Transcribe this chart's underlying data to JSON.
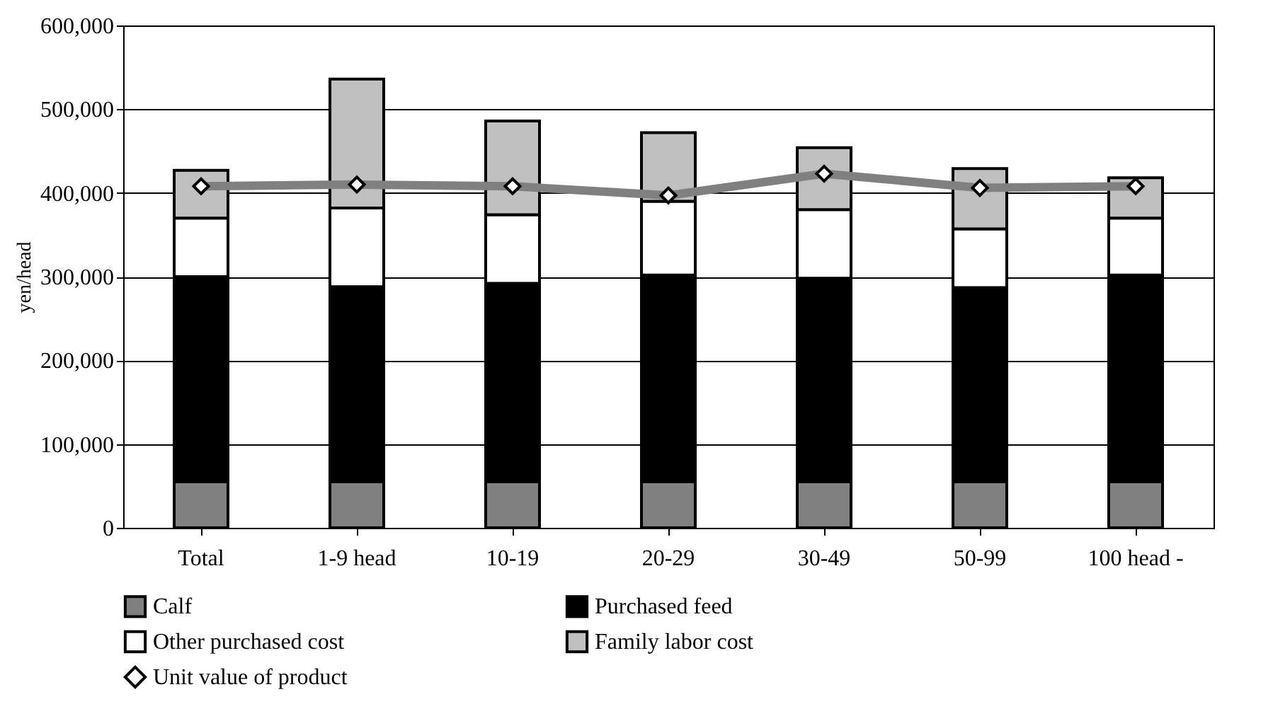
{
  "chart_data": {
    "type": "bar",
    "stacked": true,
    "ylabel": "yen/head",
    "categories": [
      "Total",
      "1-9 head",
      "10-19",
      "20-29",
      "30-49",
      "50-99",
      "100 head -"
    ],
    "ylim": [
      0,
      600000
    ],
    "yticks": [
      0,
      {
        "value": 100000,
        "label": "100,000"
      },
      {
        "value": 200000,
        "label": "200,000"
      },
      {
        "value": 300000,
        "label": "300,000"
      },
      {
        "value": 400000,
        "label": "400,000"
      },
      {
        "value": 500000,
        "label": "500,000"
      },
      {
        "value": 600000,
        "label": "600,000"
      }
    ],
    "grid": "y",
    "legend": "bottom",
    "series": [
      {
        "name": "Calf",
        "color": "#808080",
        "values": [
          55000,
          55000,
          55000,
          55000,
          55000,
          55000,
          55000
        ]
      },
      {
        "name": "Purchased feed",
        "color": "#000000",
        "values": [
          245000,
          233000,
          237000,
          247000,
          243000,
          232000,
          247000
        ]
      },
      {
        "name": "Other purchased cost",
        "color": "#ffffff",
        "values": [
          70000,
          94000,
          82000,
          88000,
          82000,
          70000,
          68000
        ]
      },
      {
        "name": "Family labor cost",
        "color": "#c0c0c0",
        "values": [
          57000,
          154000,
          112000,
          82000,
          74000,
          72000,
          48000
        ]
      },
      {
        "name": "Unit value of product",
        "type": "line",
        "marker": "diamond",
        "color": "#808080",
        "values": [
          408000,
          410000,
          408000,
          397000,
          423000,
          406000,
          408000
        ]
      }
    ]
  }
}
